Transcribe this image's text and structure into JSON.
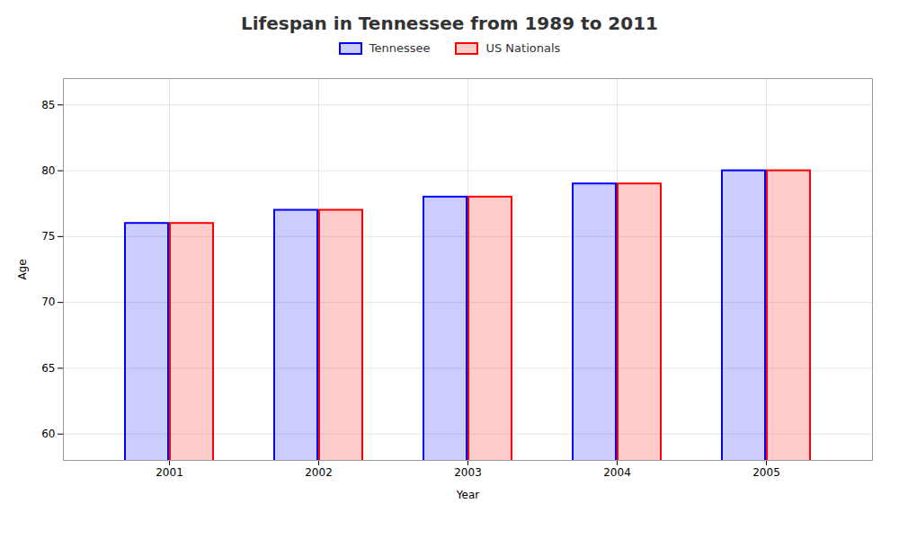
{
  "chart_data": {
    "type": "bar",
    "title": "Lifespan in Tennessee from 1989 to 2011",
    "x_label": "Year",
    "y_label": "Age",
    "categories": [
      "2001",
      "2002",
      "2003",
      "2004",
      "2005"
    ],
    "series": [
      {
        "name": "Tennessee",
        "color": "#0000ff",
        "values": [
          76,
          77,
          78,
          79,
          80
        ]
      },
      {
        "name": "US Nationals",
        "color": "#ff0000",
        "values": [
          76,
          77,
          78,
          79,
          80
        ]
      }
    ],
    "ylim": [
      58,
      87
    ],
    "yticks": [
      60,
      65,
      70,
      75,
      80,
      85
    ],
    "grid": true,
    "legend": "top"
  }
}
